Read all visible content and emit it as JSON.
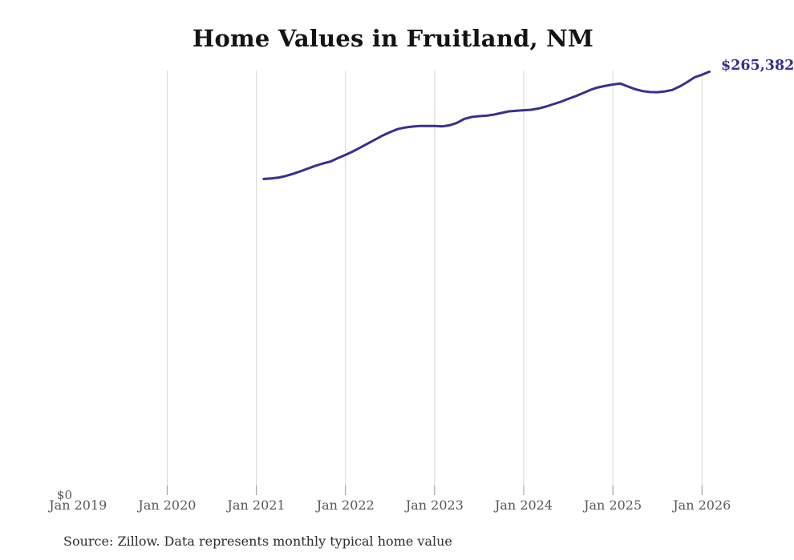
{
  "title": "Home Values in Fruitland, NM",
  "source_note": "Source: Zillow. Data represents monthly typical home value",
  "end_value_label": "$265,382",
  "y_axis": {
    "zero_label": "$0"
  },
  "x_axis": {
    "tick_labels": [
      "Jan 2019",
      "Jan 2020",
      "Jan 2021",
      "Jan 2022",
      "Jan 2023",
      "Jan 2024",
      "Jan 2025",
      "Jan 2026"
    ]
  },
  "colors": {
    "line": "#37318e",
    "end_label": "#332e8a",
    "gridline": "#d6d6d6",
    "tick": "#999999",
    "axis_label": "#5a5a5a",
    "title": "#141414",
    "source": "#2d2d2d",
    "background": "#ffffff"
  },
  "chart_data": {
    "type": "line",
    "title": "Home Values in Fruitland, NM",
    "series_name": "Monthly typical home value",
    "unit": "USD",
    "xlabel": "",
    "ylabel": "",
    "x_label_years": [
      2019,
      2020,
      2021,
      2022,
      2023,
      2024,
      2025,
      2026
    ],
    "x_gridline_years": [
      2020,
      2021,
      2022,
      2023,
      2024,
      2025,
      2026
    ],
    "ylim": [
      0,
      266000
    ],
    "grid": "vertical-only",
    "legend": "none",
    "start_month": "2021-02",
    "end_month": "2026-02",
    "final_value": 265382,
    "monthly_values": [
      198400,
      198700,
      199300,
      200300,
      201700,
      203300,
      205000,
      206700,
      208100,
      209300,
      211500,
      213400,
      215600,
      218000,
      220500,
      223000,
      225500,
      227600,
      229500,
      230500,
      231100,
      231500,
      231500,
      231500,
      231200,
      231900,
      233400,
      235900,
      237100,
      237600,
      237900,
      238600,
      239600,
      240600,
      241000,
      241300,
      241600,
      242400,
      243600,
      245100,
      246600,
      248400,
      250100,
      252100,
      254100,
      255600,
      256600,
      257400,
      258000,
      256200,
      254500,
      253300,
      252700,
      252600,
      253100,
      254000,
      256200,
      258900,
      261900,
      263500,
      265382
    ]
  }
}
